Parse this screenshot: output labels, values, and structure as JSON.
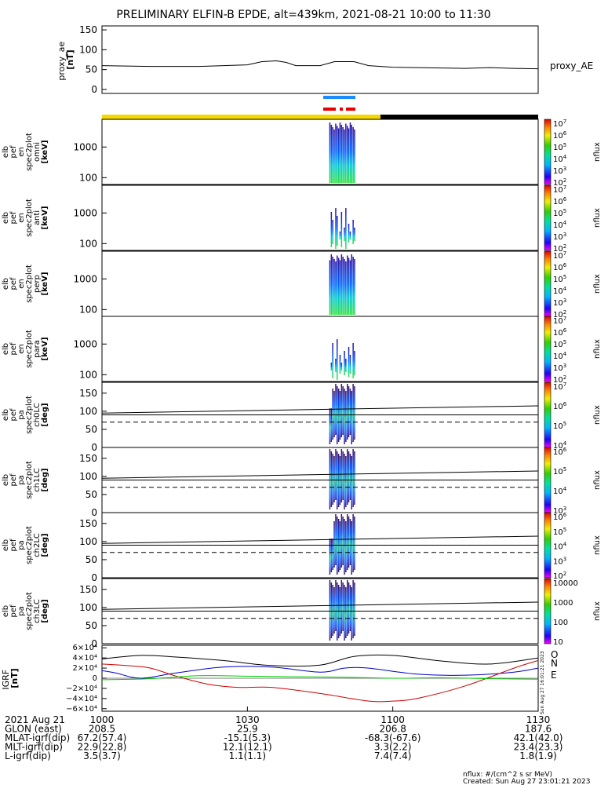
{
  "title": "PRELIMINARY ELFIN-B EPDE, alt=439km, 2021-08-21 10:00 to 11:30",
  "colors": {
    "blue_bar": "#1a8cff",
    "red_bar": "#e60000",
    "yellow_bar": "#f5d800",
    "black_bar": "#000000",
    "bx": "#000000",
    "by": "#0000cc",
    "bz": "#cc0000",
    "be": "#00cc00"
  },
  "footer": {
    "nflux_units": "nflux: #/(cm^2 s sr MeV)",
    "created": "Created: Sun Aug 27 23:01:21 2023",
    "side_stamp": "Sun Aug 27 16:01:21 2023"
  },
  "chart_data": [
    {
      "type": "line",
      "panel": "proxy_ae",
      "ylabel_lines": [
        "proxy_ae",
        "[nT]"
      ],
      "yticks": [
        "150",
        "100",
        "50",
        "0"
      ],
      "ylim": [
        -10,
        160
      ],
      "series": [
        {
          "name": "proxy_AE",
          "x": [
            0,
            10,
            20,
            30,
            33,
            36,
            38,
            40,
            45,
            48,
            52,
            55,
            60,
            65,
            70,
            75,
            80,
            85,
            90
          ],
          "values": [
            60,
            58,
            58,
            62,
            70,
            72,
            68,
            60,
            60,
            70,
            70,
            60,
            56,
            55,
            54,
            53,
            55,
            53,
            52
          ]
        }
      ]
    },
    {
      "type": "heatmap",
      "panel": "en_omni",
      "ylabel_lines": [
        "elb",
        "pef",
        "en",
        "spec2plot",
        "omni",
        "[keV]"
      ],
      "yticks": [
        "1000",
        "100"
      ],
      "cbar_ticks": [
        "10^7",
        "10^6",
        "10^5",
        "10^4",
        "10^3",
        "10^2"
      ],
      "cbar_label": "nflux"
    },
    {
      "type": "heatmap",
      "panel": "en_anti",
      "ylabel_lines": [
        "elb",
        "pef",
        "en",
        "spec2plot",
        "anti",
        "[keV]"
      ],
      "yticks": [
        "1000",
        "100"
      ],
      "cbar_ticks": [
        "10^7",
        "10^6",
        "10^5",
        "10^4",
        "10^3",
        "10^2"
      ],
      "cbar_label": "nflux"
    },
    {
      "type": "heatmap",
      "panel": "en_perp",
      "ylabel_lines": [
        "elb",
        "pef",
        "en",
        "spec2plot",
        "perp",
        "[keV]"
      ],
      "yticks": [
        "1000",
        "100"
      ],
      "cbar_ticks": [
        "10^7",
        "10^6",
        "10^5",
        "10^4",
        "10^3",
        "10^2"
      ],
      "cbar_label": "nflux"
    },
    {
      "type": "heatmap",
      "panel": "en_para",
      "ylabel_lines": [
        "elb",
        "pef",
        "en",
        "spec2plot",
        "para",
        "[keV]"
      ],
      "yticks": [
        "1000",
        "100"
      ],
      "cbar_ticks": [
        "10^7",
        "10^6",
        "10^5",
        "10^4",
        "10^3",
        "10^2"
      ],
      "cbar_label": "nflux"
    },
    {
      "type": "heatmap",
      "panel": "pa_ch0LC",
      "ylabel_lines": [
        "elb",
        "pef",
        "pa",
        "spec2plot",
        "ch0LC",
        "[deg]"
      ],
      "yticks": [
        "150",
        "100",
        "50",
        "0"
      ],
      "cbar_ticks": [
        "10^7",
        "10^6",
        "10^5",
        "10^4"
      ],
      "cbar_label": "nflux"
    },
    {
      "type": "heatmap",
      "panel": "pa_ch1LC",
      "ylabel_lines": [
        "elb",
        "pef",
        "pa",
        "spec2plot",
        "ch1LC",
        "[deg]"
      ],
      "yticks": [
        "150",
        "100",
        "50",
        "0"
      ],
      "cbar_ticks": [
        "10^6",
        "10^5",
        "10^4",
        "10^3"
      ],
      "cbar_label": "nflux"
    },
    {
      "type": "heatmap",
      "panel": "pa_ch2LC",
      "ylabel_lines": [
        "elb",
        "pef",
        "pa",
        "spec2plot",
        "ch2LC",
        "[deg]"
      ],
      "yticks": [
        "150",
        "100",
        "50",
        "0"
      ],
      "cbar_ticks": [
        "10^6",
        "10^5",
        "10^4",
        "10^3",
        "10^2"
      ],
      "cbar_label": "nflux"
    },
    {
      "type": "heatmap",
      "panel": "pa_ch3LC",
      "ylabel_lines": [
        "elb",
        "pef",
        "pa",
        "spec2plot",
        "ch3LC",
        "[deg]"
      ],
      "yticks": [
        "150",
        "100",
        "50",
        "0"
      ],
      "cbar_ticks": [
        "10000",
        "1000",
        "100",
        "10"
      ],
      "cbar_label": "nflux"
    },
    {
      "type": "line",
      "panel": "dB_igrf",
      "ylabel_lines": [
        "IGRF",
        "[nT]"
      ],
      "ylim": [
        -65000,
        65000
      ],
      "yticks": [
        "6×10⁴",
        "4×10⁴",
        "2×10⁴",
        "0",
        "−2×10⁴",
        "−4×10⁴",
        "−6×10⁴"
      ],
      "legend": [
        "O",
        "N",
        "E"
      ],
      "series": [
        {
          "color": "#000000",
          "x": [
            0,
            8,
            15,
            25,
            35,
            45,
            52,
            60,
            70,
            80,
            90
          ],
          "values": [
            38000,
            45000,
            42000,
            35000,
            25000,
            26000,
            43000,
            45000,
            34000,
            28000,
            40000
          ]
        },
        {
          "color": "#0000cc",
          "x": [
            0,
            3,
            8,
            15,
            25,
            35,
            45,
            50,
            55,
            65,
            75,
            85,
            90
          ],
          "values": [
            15000,
            10000,
            0,
            10000,
            22000,
            22000,
            12000,
            20000,
            20000,
            8000,
            6000,
            12000,
            20000
          ]
        },
        {
          "color": "#cc0000",
          "x": [
            0,
            5,
            10,
            15,
            22,
            28,
            35,
            45,
            55,
            60,
            65,
            75,
            85,
            90
          ],
          "values": [
            28000,
            25000,
            20000,
            5000,
            -12000,
            -18000,
            -18000,
            -30000,
            -45000,
            -45000,
            -40000,
            -15000,
            20000,
            35000
          ]
        },
        {
          "color": "#00cc00",
          "x": [
            0,
            10,
            20,
            30,
            40,
            50,
            60,
            70,
            80,
            90
          ],
          "values": [
            -3000,
            -1000,
            5000,
            4000,
            3000,
            2000,
            0,
            1000,
            -1000,
            -2000
          ]
        }
      ]
    }
  ],
  "xaxis": {
    "ticks": [
      {
        "t": 0,
        "label": "1000"
      },
      {
        "t": 30,
        "label": "1030"
      },
      {
        "t": 60,
        "label": "1100"
      },
      {
        "t": 90,
        "label": "1130"
      }
    ],
    "rows": [
      {
        "label": "2021 Aug 21",
        "values": [
          "",
          "",
          "",
          ""
        ]
      },
      {
        "label": "GLON (east)",
        "values": [
          "208.5",
          "25.9",
          "206.8",
          "187.6"
        ]
      },
      {
        "label": "MLAT-igrf(dip)",
        "values": [
          "67.2(57.4)",
          "-15.1(5.3)",
          "-68.3(-67.6)",
          "42.1(42.0)"
        ]
      },
      {
        "label": "MLT-igrf(dip)",
        "values": [
          "22.9(22.8)",
          "12.1(12.1)",
          "3.3(2.2)",
          "23.4(23.3)"
        ]
      },
      {
        "label": "L-igrf(dip)",
        "values": [
          "3.5(3.7)",
          "1.1(1.1)",
          "7.4(7.4)",
          "1.8(1.9)"
        ]
      }
    ]
  }
}
